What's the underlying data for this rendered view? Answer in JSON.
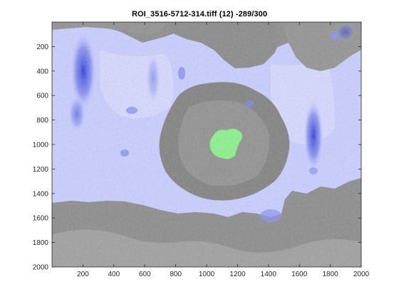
{
  "window": {
    "title": "ROI_3516-5712-314.tiff  (12)   -289/300"
  },
  "axes": {
    "x_ticks": [
      "200",
      "400",
      "600",
      "800",
      "1000",
      "1200",
      "1400",
      "1600",
      "1800",
      "2000"
    ],
    "y_ticks": [
      "200",
      "400",
      "600",
      "800",
      "1000",
      "1200",
      "1400",
      "1600",
      "1800",
      "2000"
    ],
    "x_tick_values": [
      200,
      400,
      600,
      800,
      1000,
      1200,
      1400,
      1600,
      1800,
      2000
    ],
    "y_tick_values": [
      200,
      400,
      600,
      800,
      1000,
      1200,
      1400,
      1600,
      1800,
      2000
    ],
    "x_range": [
      0,
      2000
    ],
    "y_range": [
      0,
      2000
    ],
    "y_direction": "reversed"
  },
  "image": {
    "background_gray": "#8f8f8f",
    "overlay_blue": "#c9ceff",
    "dark_blue": "#2b3bd8",
    "segment_green": "#8ff08f"
  }
}
